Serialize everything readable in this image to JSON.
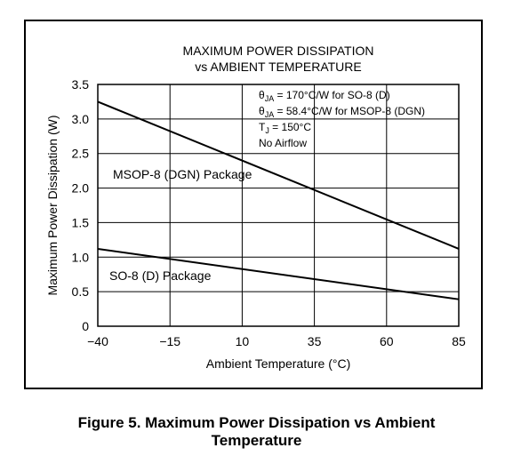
{
  "chart_data": {
    "type": "line",
    "title": [
      "MAXIMUM POWER DISSIPATION",
      "vs AMBIENT TEMPERATURE"
    ],
    "xlabel": "Ambient Temperature (°C)",
    "ylabel": "Maximum Power Dissipation (W)",
    "xlim": [
      -40,
      85
    ],
    "ylim": [
      0,
      3.5
    ],
    "x_ticks": [
      -40,
      -15,
      10,
      35,
      60,
      85
    ],
    "x_tick_labels": [
      "−40",
      "−15",
      "10",
      "35",
      "60",
      "85"
    ],
    "y_ticks": [
      0,
      0.5,
      1.0,
      1.5,
      2.0,
      2.5,
      3.0,
      3.5
    ],
    "y_tick_labels": [
      "0",
      "0.5",
      "1.0",
      "1.5",
      "2.0",
      "2.5",
      "3.0",
      "3.5"
    ],
    "grid": true,
    "series": [
      {
        "name": "MSOP-8 (DGN) Package",
        "x": [
          -40,
          85
        ],
        "y": [
          3.25,
          1.12
        ]
      },
      {
        "name": "SO-8 (D) Package",
        "x": [
          -40,
          85
        ],
        "y": [
          1.12,
          0.39
        ]
      }
    ],
    "annotations": [
      {
        "prefix": "θ",
        "sub": "JA",
        "text": " = 170°C/W for SO-8 (D)"
      },
      {
        "prefix": "θ",
        "sub": "JA",
        "text": " = 58.4°C/W for MSOP-8 (DGN)"
      },
      {
        "prefix": "T",
        "sub": "J",
        "text": " = 150°C"
      },
      {
        "prefix": "",
        "sub": "",
        "text": "No Airflow"
      }
    ],
    "caption": [
      "Figure 5. Maximum Power Dissipation vs Ambient",
      "Temperature"
    ]
  }
}
